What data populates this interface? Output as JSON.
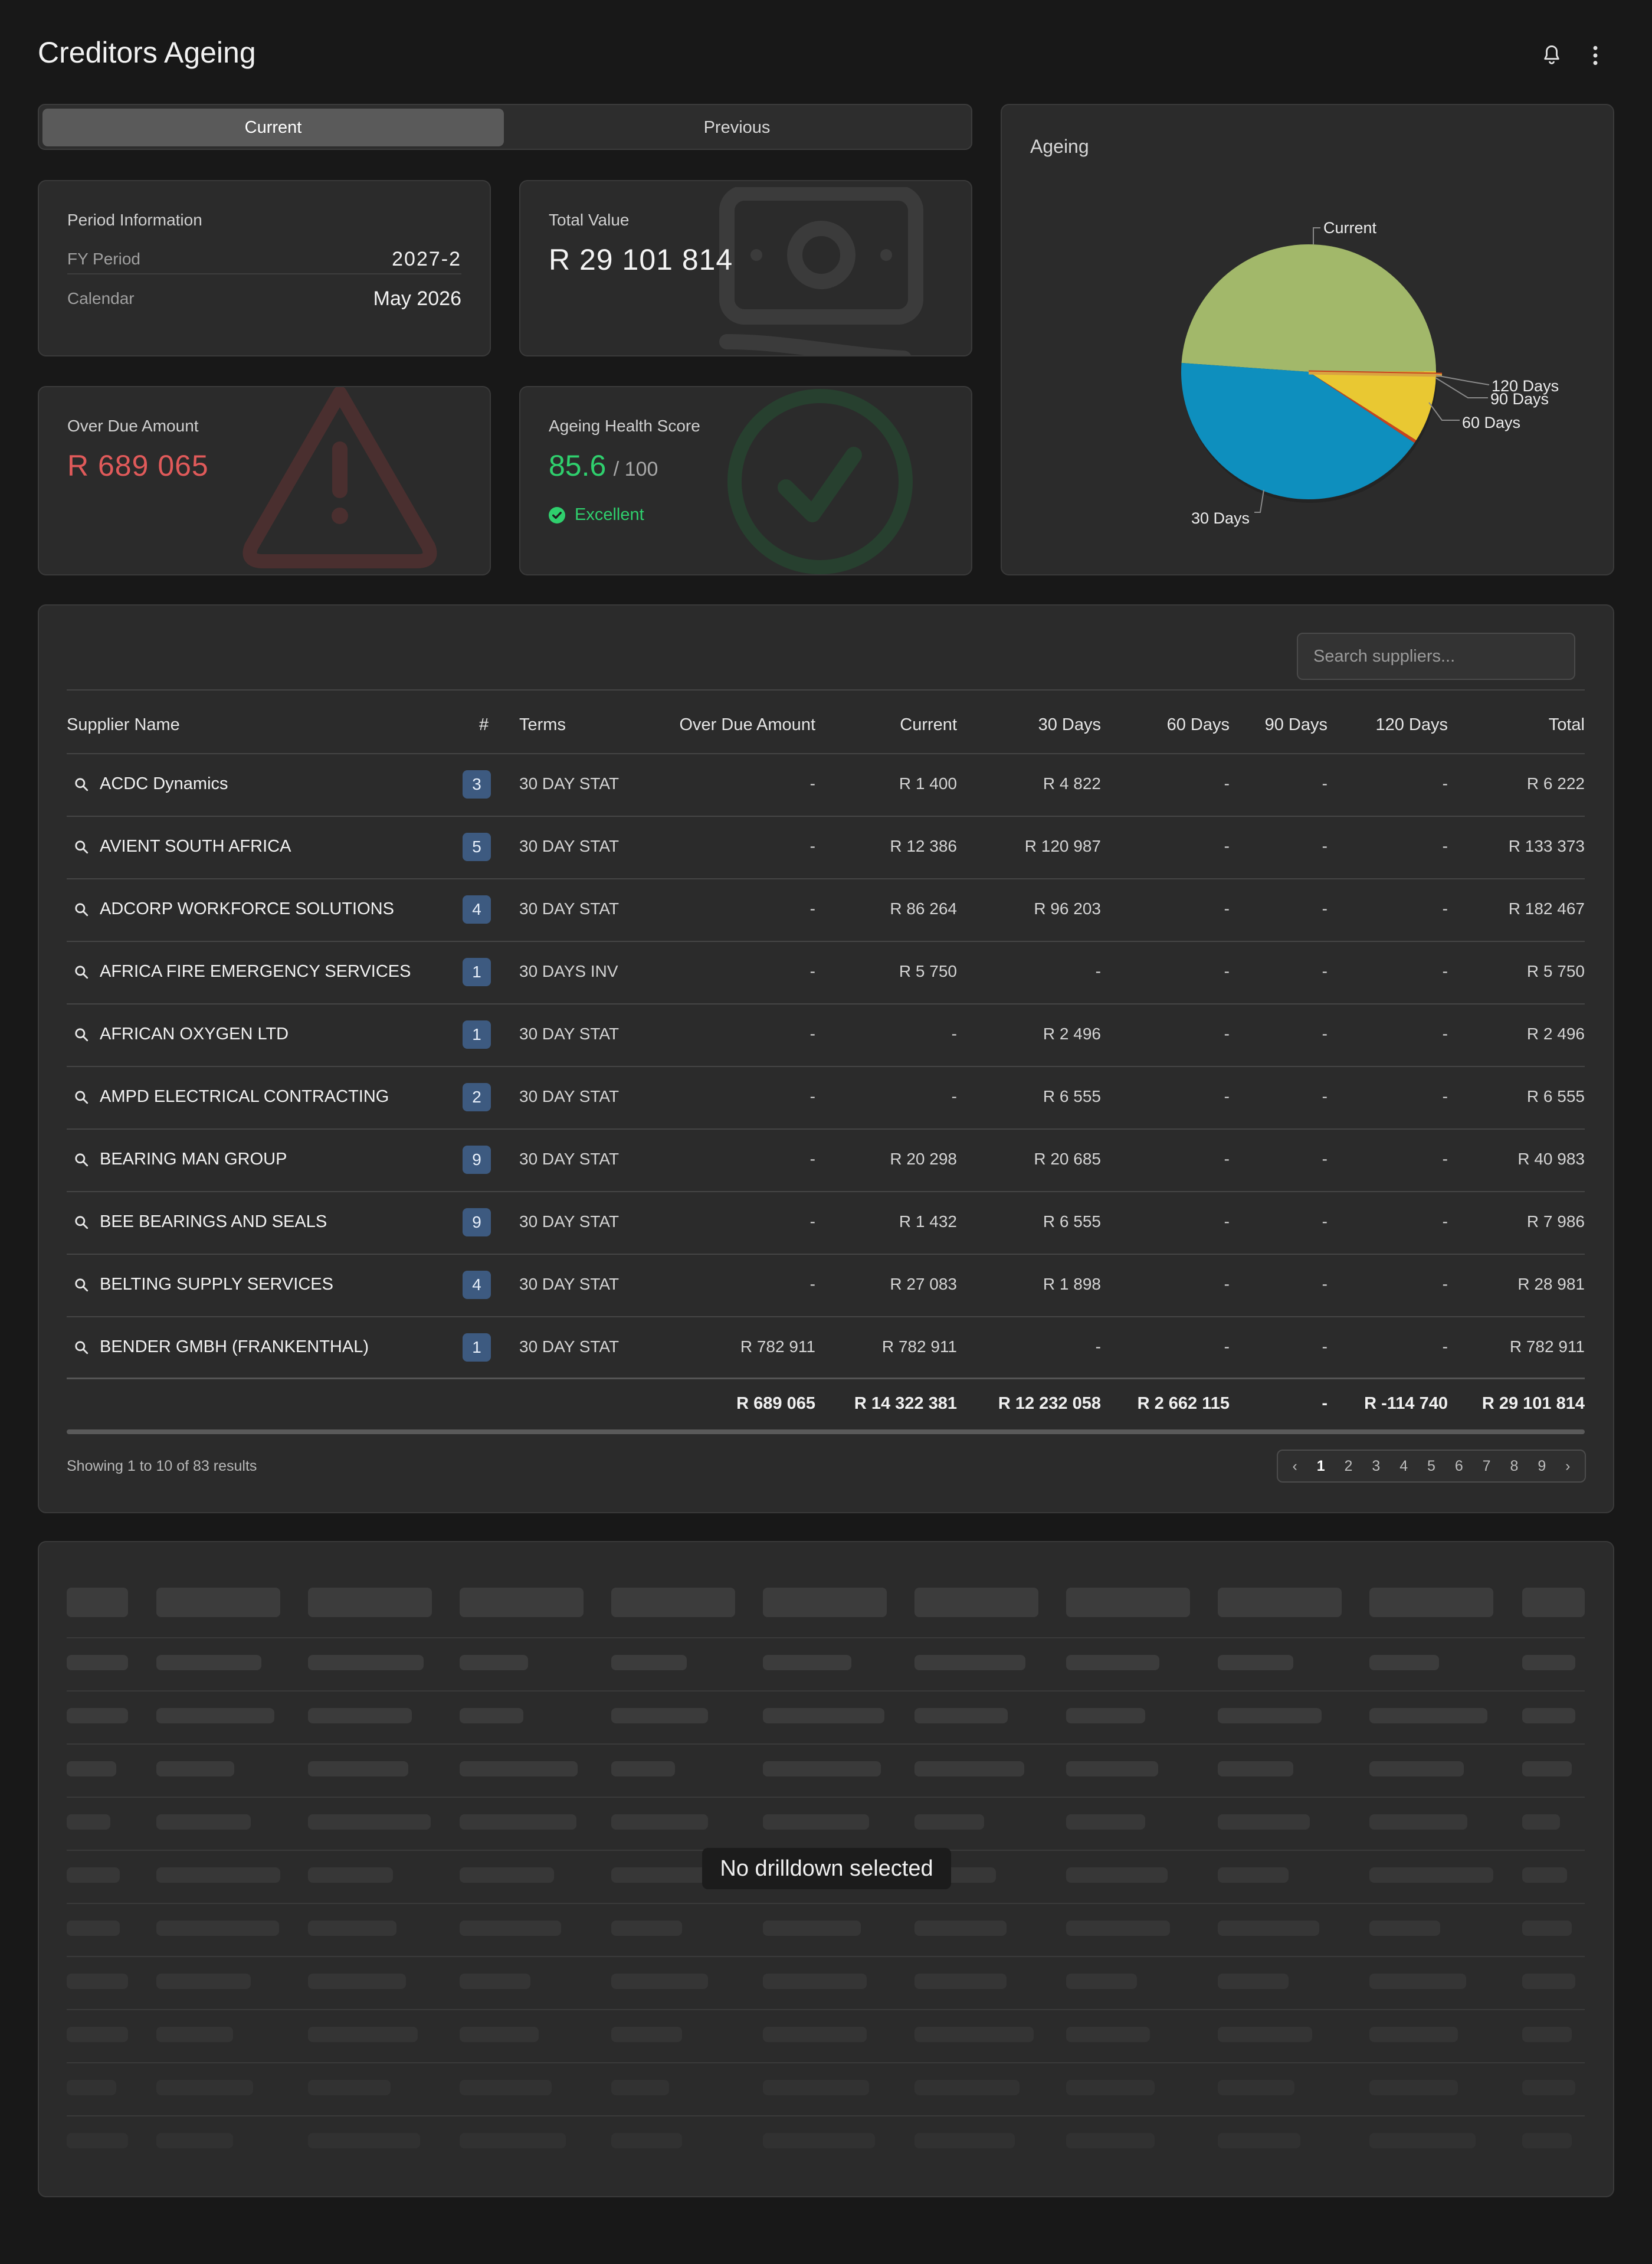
{
  "header": {
    "title": "Creditors Ageing",
    "icons": [
      "bell-icon",
      "more-vertical-icon"
    ]
  },
  "period_toggle": {
    "options": [
      "Current",
      "Previous"
    ],
    "selected": "Current"
  },
  "period_info": {
    "heading": "Period Information",
    "fy_label": "FY Period",
    "fy_value": "2027-2",
    "cal_label": "Calendar",
    "cal_value": "May 2026"
  },
  "total_value": {
    "label": "Total Value",
    "value": "R 29 101 814",
    "icon": "banknote-icon"
  },
  "overdue": {
    "label": "Over Due Amount",
    "value": "R 689 065",
    "icon": "warning-triangle-icon"
  },
  "health": {
    "label": "Ageing Health Score",
    "score": "85.6",
    "max": "/ 100",
    "status": "Excellent",
    "icon": "check-circle-icon"
  },
  "ageing_chart": {
    "title": "Ageing"
  },
  "chart_data": {
    "type": "pie",
    "title": "Ageing",
    "categories": [
      "Current",
      "30 Days",
      "60 Days",
      "90 Days",
      "120 Days"
    ],
    "values": [
      14322381,
      12232058,
      2662115,
      0,
      -114740
    ],
    "colors": [
      "#a2b86a",
      "#0e8fbe",
      "#e9c832",
      "#d9a441",
      "#c8441e"
    ]
  },
  "table": {
    "search_placeholder": "Search suppliers...",
    "columns": [
      "Supplier Name",
      "#",
      "Terms",
      "Over Due Amount",
      "Current",
      "30 Days",
      "60 Days",
      "90 Days",
      "120 Days",
      "Total"
    ],
    "rows": [
      {
        "name": "ACDC Dynamics",
        "count": "3",
        "terms": "30 DAY STAT",
        "overdue": "-",
        "current": "R 1 400",
        "d30": "R 4 822",
        "d60": "-",
        "d90": "-",
        "d120": "-",
        "total": "R 6 222"
      },
      {
        "name": "AVIENT SOUTH AFRICA",
        "count": "5",
        "terms": "30 DAY STAT",
        "overdue": "-",
        "current": "R 12 386",
        "d30": "R 120 987",
        "d60": "-",
        "d90": "-",
        "d120": "-",
        "total": "R 133 373"
      },
      {
        "name": "ADCORP WORKFORCE SOLUTIONS",
        "count": "4",
        "terms": "30 DAY STAT",
        "overdue": "-",
        "current": "R 86 264",
        "d30": "R 96 203",
        "d60": "-",
        "d90": "-",
        "d120": "-",
        "total": "R 182 467"
      },
      {
        "name": "AFRICA FIRE EMERGENCY SERVICES",
        "count": "1",
        "terms": "30 DAYS INV",
        "overdue": "-",
        "current": "R 5 750",
        "d30": "-",
        "d60": "-",
        "d90": "-",
        "d120": "-",
        "total": "R 5 750"
      },
      {
        "name": "AFRICAN OXYGEN LTD",
        "count": "1",
        "terms": "30 DAY STAT",
        "overdue": "-",
        "current": "-",
        "d30": "R 2 496",
        "d60": "-",
        "d90": "-",
        "d120": "-",
        "total": "R 2 496"
      },
      {
        "name": "AMPD ELECTRICAL CONTRACTING",
        "count": "2",
        "terms": "30 DAY STAT",
        "overdue": "-",
        "current": "-",
        "d30": "R 6 555",
        "d60": "-",
        "d90": "-",
        "d120": "-",
        "total": "R 6 555"
      },
      {
        "name": "BEARING MAN GROUP",
        "count": "9",
        "terms": "30 DAY STAT",
        "overdue": "-",
        "current": "R 20 298",
        "d30": "R 20 685",
        "d60": "-",
        "d90": "-",
        "d120": "-",
        "total": "R 40 983"
      },
      {
        "name": "BEE BEARINGS AND SEALS",
        "count": "9",
        "terms": "30 DAY STAT",
        "overdue": "-",
        "current": "R 1 432",
        "d30": "R 6 555",
        "d60": "-",
        "d90": "-",
        "d120": "-",
        "total": "R 7 986"
      },
      {
        "name": "BELTING SUPPLY SERVICES",
        "count": "4",
        "terms": "30 DAY STAT",
        "overdue": "-",
        "current": "R 27 083",
        "d30": "R 1 898",
        "d60": "-",
        "d90": "-",
        "d120": "-",
        "total": "R 28 981"
      },
      {
        "name": "BENDER GMBH (FRANKENTHAL)",
        "count": "1",
        "terms": "30 DAY STAT",
        "overdue": "R 782 911",
        "current": "R 782 911",
        "d30": "-",
        "d60": "-",
        "d90": "-",
        "d120": "-",
        "total": "R 782 911"
      }
    ],
    "totals": {
      "overdue": "R 689 065",
      "current": "R 14 322 381",
      "d30": "R 12 232 058",
      "d60": "R 2 662 115",
      "d90": "-",
      "d120": "R -114 740",
      "total": "R 29 101 814"
    },
    "results_text": "Showing 1 to 10 of 83 results",
    "pages": [
      "1",
      "2",
      "3",
      "4",
      "5",
      "6",
      "7",
      "8",
      "9"
    ],
    "current_page": "1"
  },
  "drilldown": {
    "empty_message": "No drilldown selected"
  }
}
